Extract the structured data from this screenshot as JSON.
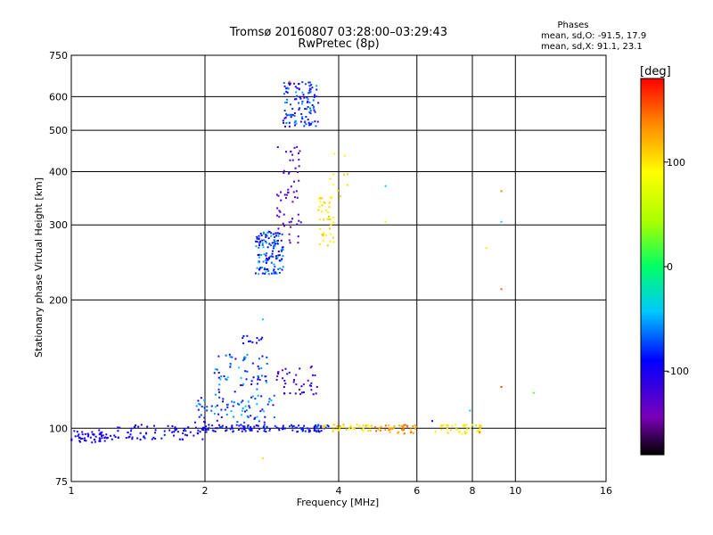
{
  "chart_data": {
    "type": "scatter",
    "title": "Tromsø 20160807 03:28:00–03:29:43",
    "subtitle": "RwPretec (8p)",
    "xlabel": "Frequency [MHz]",
    "ylabel": "Stationary phase Virtual Height [km]",
    "x_scale": "log",
    "y_scale": "log",
    "xlim": [
      1,
      16
    ],
    "ylim": [
      75,
      750
    ],
    "x_ticks": [
      1,
      2,
      4,
      6,
      8,
      10,
      16
    ],
    "x_tick_labels": [
      "1",
      "2",
      "4",
      "6",
      "8",
      "10",
      "16"
    ],
    "y_ticks": [
      75,
      100,
      200,
      300,
      400,
      500,
      600,
      750
    ],
    "y_tick_labels": [
      "75",
      "100",
      "200",
      "300",
      "400",
      "500",
      "600",
      "750"
    ],
    "grid": true,
    "stats": {
      "title": "Phases",
      "line_o": "mean, sd,O: -91.5, 17.9",
      "line_x": "mean, sd,X:  91.1, 23.1"
    },
    "colorbar": {
      "label": "[deg]",
      "range": [
        -180,
        180
      ],
      "ticks": [
        100,
        0,
        -100
      ],
      "tick_labels": [
        "100",
        "0",
        "-100"
      ]
    },
    "clusters": [
      {
        "f": [
          1.0,
          1.2
        ],
        "h": [
          92,
          99
        ],
        "phase": [
          -110,
          -90
        ],
        "n": 50
      },
      {
        "f": [
          1.2,
          2.0
        ],
        "h": [
          94,
          102
        ],
        "phase": [
          -110,
          -85
        ],
        "n": 80
      },
      {
        "f": [
          2.0,
          3.8
        ],
        "h": [
          98,
          102
        ],
        "phase": [
          -115,
          -70
        ],
        "n": 120
      },
      {
        "f": [
          1.9,
          2.9
        ],
        "h": [
          103,
          120
        ],
        "phase": [
          -110,
          -40
        ],
        "n": 80
      },
      {
        "f": [
          2.1,
          2.8
        ],
        "h": [
          120,
          150
        ],
        "phase": [
          -105,
          -40
        ],
        "n": 60
      },
      {
        "f": [
          2.9,
          3.6
        ],
        "h": [
          120,
          140
        ],
        "phase": [
          -140,
          -90
        ],
        "n": 40
      },
      {
        "f": [
          2.4,
          2.7
        ],
        "h": [
          158,
          165
        ],
        "phase": [
          -100,
          -90
        ],
        "n": 12
      },
      {
        "f": [
          2.6,
          3.0
        ],
        "h": [
          230,
          290
        ],
        "phase": [
          -110,
          -40
        ],
        "n": 140
      },
      {
        "f": [
          2.9,
          3.3
        ],
        "h": [
          270,
          460
        ],
        "phase": [
          -140,
          -110
        ],
        "n": 60
      },
      {
        "f": [
          3.0,
          3.6
        ],
        "h": [
          510,
          650
        ],
        "phase": [
          -120,
          -50
        ],
        "n": 120
      },
      {
        "f": [
          3.6,
          3.9
        ],
        "h": [
          265,
          350
        ],
        "phase": [
          80,
          115
        ],
        "n": 40
      },
      {
        "f": [
          3.8,
          4.2
        ],
        "h": [
          350,
          445
        ],
        "phase": [
          85,
          110
        ],
        "n": 10
      },
      {
        "f": [
          3.6,
          4.8
        ],
        "h": [
          98,
          102
        ],
        "phase": [
          80,
          125
        ],
        "n": 40
      },
      {
        "f": [
          4.8,
          6.0
        ],
        "h": [
          97,
          102
        ],
        "phase": [
          110,
          150
        ],
        "n": 40
      },
      {
        "f": [
          6.6,
          8.4
        ],
        "h": [
          97,
          102
        ],
        "phase": [
          80,
          110
        ],
        "n": 40
      }
    ],
    "points": [
      {
        "f": 5.1,
        "h": 370,
        "phase": -40
      },
      {
        "f": 5.1,
        "h": 305,
        "phase": 80
      },
      {
        "f": 9.3,
        "h": 360,
        "phase": 140
      },
      {
        "f": 9.3,
        "h": 305,
        "phase": -40
      },
      {
        "f": 9.3,
        "h": 212,
        "phase": 150
      },
      {
        "f": 9.3,
        "h": 125,
        "phase": 160
      },
      {
        "f": 8.6,
        "h": 265,
        "phase": 80
      },
      {
        "f": 11.0,
        "h": 121,
        "phase": 20
      },
      {
        "f": 6.5,
        "h": 104,
        "phase": -110
      },
      {
        "f": 7.9,
        "h": 110,
        "phase": -40
      },
      {
        "f": 8.3,
        "h": 98,
        "phase": 140
      },
      {
        "f": 2.7,
        "h": 85,
        "phase": 100
      },
      {
        "f": 3.1,
        "h": 650,
        "phase": 150
      },
      {
        "f": 2.7,
        "h": 180,
        "phase": -40
      }
    ]
  }
}
